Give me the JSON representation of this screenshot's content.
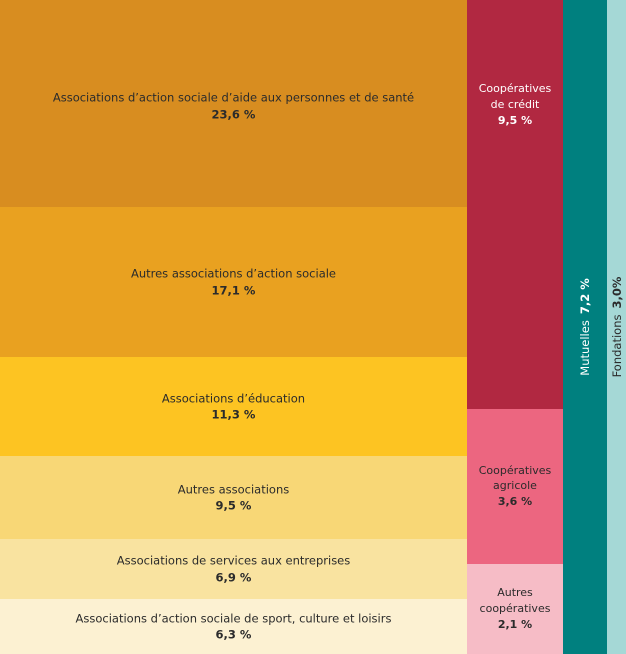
{
  "chart_data": {
    "type": "treemap",
    "unit": "%",
    "columns": [
      {
        "orientation": "stacked",
        "cells": [
          {
            "name": "Associations d’action sociale d’aide aux personnes et de santé",
            "value": 23.6,
            "value_label": "23,6 %",
            "color": "#d88d20"
          },
          {
            "name": "Autres associations d’action sociale",
            "value": 17.1,
            "value_label": "17,1 %",
            "color": "#e9a120"
          },
          {
            "name": "Associations d’éducation",
            "value": 11.3,
            "value_label": "11,3 %",
            "color": "#fdc422"
          },
          {
            "name": "Autres associations",
            "value": 9.5,
            "value_label": "9,5 %",
            "color": "#f8d776"
          },
          {
            "name": "Associations de services aux entreprises",
            "value": 6.9,
            "value_label": "6,9 %",
            "color": "#f9e3a0"
          },
          {
            "name": "Associations d’action sociale de sport, culture et loisirs",
            "value": 6.3,
            "value_label": "6,3 %",
            "color": "#fcf1d2"
          }
        ]
      },
      {
        "orientation": "stacked",
        "cells": [
          {
            "name": "Coopératives de crédit",
            "lines": [
              "Coopératives",
              "de crédit"
            ],
            "value": 9.5,
            "value_label": "9,5 %",
            "color": "#b12841",
            "text_color": "#ffffff",
            "label_position": "top"
          },
          {
            "name": "Coopératives agricole",
            "lines": [
              "Coopératives",
              "agricole"
            ],
            "value": 3.6,
            "value_label": "3,6 %",
            "color": "#ec6680",
            "text_color": "#2b2b2b"
          },
          {
            "name": "Autres coopératives",
            "lines": [
              "Autres",
              "coopératives"
            ],
            "value": 2.1,
            "value_label": "2,1 %",
            "color": "#f6bcc6",
            "text_color": "#2b2b2b"
          }
        ]
      },
      {
        "orientation": "vertical-text",
        "cells": [
          {
            "name": "Mutuelles",
            "value": 7.2,
            "value_label": "7,2 %",
            "color": "#00807f",
            "text_color": "#ffffff"
          }
        ]
      },
      {
        "orientation": "vertical-text",
        "cells": [
          {
            "name": "Fondations",
            "value": 3.0,
            "value_label": "3,0%",
            "color": "#a5d8d6",
            "text_color": "#2b2b2b"
          }
        ]
      }
    ]
  }
}
